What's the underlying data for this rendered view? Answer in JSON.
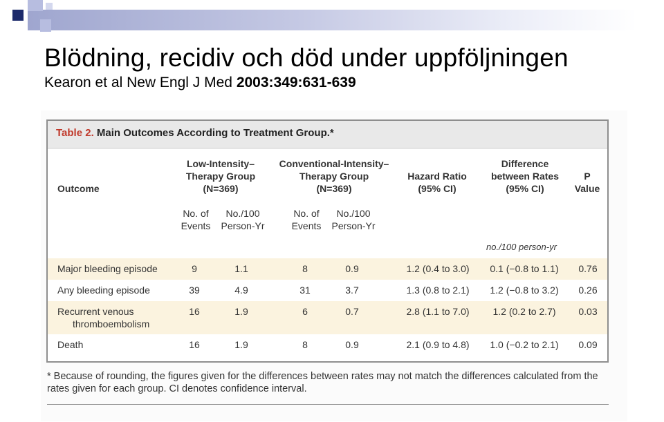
{
  "slide": {
    "title": "Blödning, recidiv och död under uppföljningen",
    "subtitle_regular": "Kearon et al New Engl J Med ",
    "subtitle_bold": "2003:349:631-639"
  },
  "colors": {
    "band": "#9fa6cf",
    "square_dark": "#1c2a6b",
    "square_light": "#b7bde0",
    "caption_label": "#c0392b",
    "row_shade": "#fbf3df"
  },
  "table": {
    "caption_label": "Table 2.",
    "caption_text": " Main Outcomes According to Treatment Group.*",
    "headers": {
      "outcome": "Outcome",
      "low_line1": "Low-Intensity–",
      "low_line2": "Therapy Group",
      "low_line3": "(N=369)",
      "conv_line1": "Conventional-Intensity–",
      "conv_line2": "Therapy Group",
      "conv_line3": "(N=369)",
      "hr_line1": "Hazard Ratio",
      "hr_line2": "(95% CI)",
      "diff_line1": "Difference",
      "diff_line2": "between Rates",
      "diff_line3": "(95% CI)",
      "p_line1": "P",
      "p_line2": "Value"
    },
    "subheaders": {
      "events_line1": "No. of",
      "events_line2": "Events",
      "rate_line1": "No./100",
      "rate_line2": "Person-Yr"
    },
    "unit_note": "no./100 person-yr",
    "rows": [
      {
        "outcome": "Major bleeding episode",
        "outcome2": "",
        "low_events": "9",
        "low_rate": "1.1",
        "conv_events": "8",
        "conv_rate": "0.9",
        "hr": "1.2 (0.4 to 3.0)",
        "diff": "0.1 (−0.8 to 1.1)",
        "p": "0.76"
      },
      {
        "outcome": "Any bleeding episode",
        "outcome2": "",
        "low_events": "39",
        "low_rate": "4.9",
        "conv_events": "31",
        "conv_rate": "3.7",
        "hr": "1.3 (0.8 to 2.1)",
        "diff": "1.2 (−0.8 to 3.2)",
        "p": "0.26"
      },
      {
        "outcome": "Recurrent venous",
        "outcome2": "thromboembolism",
        "low_events": "16",
        "low_rate": "1.9",
        "conv_events": "6",
        "conv_rate": "0.7",
        "hr": "2.8 (1.1 to 7.0)",
        "diff": "1.2 (0.2 to 2.7)",
        "p": "0.03"
      },
      {
        "outcome": "Death",
        "outcome2": "",
        "low_events": "16",
        "low_rate": "1.9",
        "conv_events": "8",
        "conv_rate": "0.9",
        "hr": "2.1 (0.9 to 4.8)",
        "diff": "1.0 (−0.2 to 2.1)",
        "p": "0.09"
      }
    ],
    "footnote": "* Because of rounding, the figures given for the differences between rates may not match the differences calculated from the rates given for each group. CI denotes confidence interval."
  }
}
